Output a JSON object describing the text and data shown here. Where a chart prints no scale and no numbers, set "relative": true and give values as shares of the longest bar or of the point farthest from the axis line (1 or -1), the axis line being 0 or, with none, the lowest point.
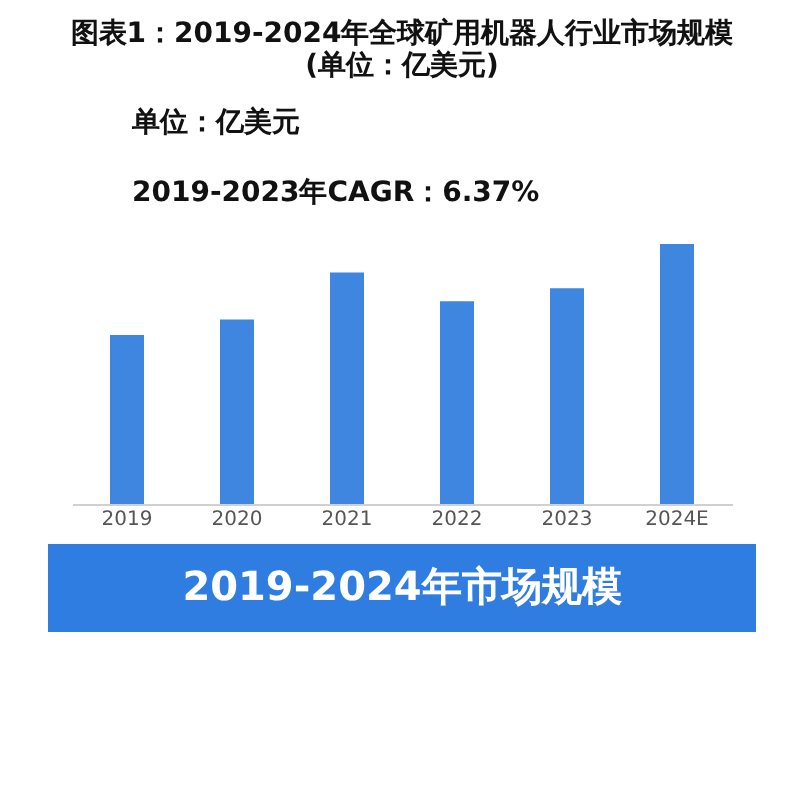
{
  "chart_data": {
    "type": "bar",
    "title": "图表1：2019-2024年全球矿用机器人行业市场规模(单位：亿美元)",
    "subtitle": "2019-2024年市场规模",
    "annotations": [
      "单位：亿美元",
      "2019-2023年CAGR：6.37%"
    ],
    "categories": [
      "2019",
      "2020",
      "2021",
      "2022",
      "2023",
      "2024E"
    ],
    "values": [
      0.65,
      0.71,
      0.89,
      0.78,
      0.83,
      1
    ],
    "color": "#3f86e0",
    "relative": true,
    "grid": false
  }
}
